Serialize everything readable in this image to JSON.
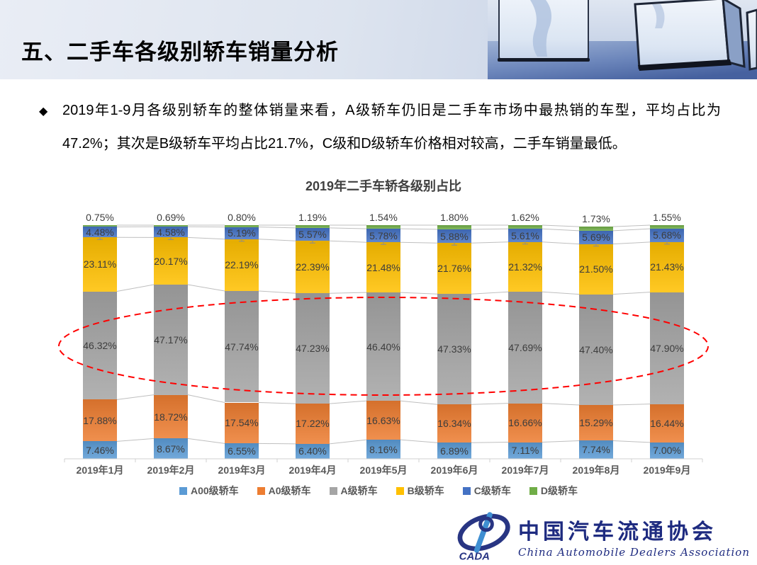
{
  "header": {
    "title": "五、二手车各级别轿车销量分析"
  },
  "bullet": {
    "marker": "◆",
    "text": "2019年1-9月各级别轿车的整体销量来看，A级轿车仍旧是二手车市场中最热销的车型，平均占比为47.2%；其次是B级轿车平均占比21.7%，C级和D级轿车价格相对较高，二手车销量最低。"
  },
  "chart_data": {
    "type": "bar",
    "stacked": true,
    "title": "2019年二手车轿各级别占比",
    "categories": [
      "2019年1月",
      "2019年2月",
      "2019年3月",
      "2019年4月",
      "2019年5月",
      "2019年6月",
      "2019年7月",
      "2019年8月",
      "2019年9月"
    ],
    "series": [
      {
        "name": "A00级轿车",
        "color": "#5B9BD5",
        "values": [
          7.46,
          8.67,
          6.55,
          6.4,
          8.16,
          6.89,
          7.11,
          7.74,
          7.0
        ]
      },
      {
        "name": "A0级轿车",
        "color": "#ED7D31",
        "values": [
          17.88,
          18.72,
          17.54,
          17.22,
          16.63,
          16.34,
          16.66,
          15.29,
          16.44
        ]
      },
      {
        "name": "A级轿车",
        "color": "#A5A5A5",
        "values": [
          46.32,
          47.17,
          47.74,
          47.23,
          46.4,
          47.33,
          47.69,
          47.4,
          47.9
        ]
      },
      {
        "name": "B级轿车",
        "color": "#FFC000",
        "values": [
          23.11,
          20.17,
          22.19,
          22.39,
          21.48,
          21.76,
          21.32,
          21.5,
          21.43
        ]
      },
      {
        "name": "C级轿车",
        "color": "#4472C4",
        "values": [
          4.48,
          4.58,
          5.19,
          5.57,
          5.78,
          5.88,
          5.61,
          5.69,
          5.68
        ]
      },
      {
        "name": "D级轿车",
        "color": "#70AD47",
        "values": [
          0.75,
          0.69,
          0.8,
          1.19,
          1.54,
          1.8,
          1.62,
          1.73,
          1.55
        ]
      }
    ],
    "value_suffix": "%",
    "ylim": [
      0,
      100
    ],
    "grid": false,
    "legend_position": "bottom",
    "annotation": {
      "type": "dashed-ellipse",
      "color": "#FF0000",
      "covers": "A级轿车 segments"
    }
  },
  "footer": {
    "logo_acronym": "CADA",
    "org_cn": "中国汽车流通协会",
    "org_en": "China Automobile Dealers Association"
  }
}
